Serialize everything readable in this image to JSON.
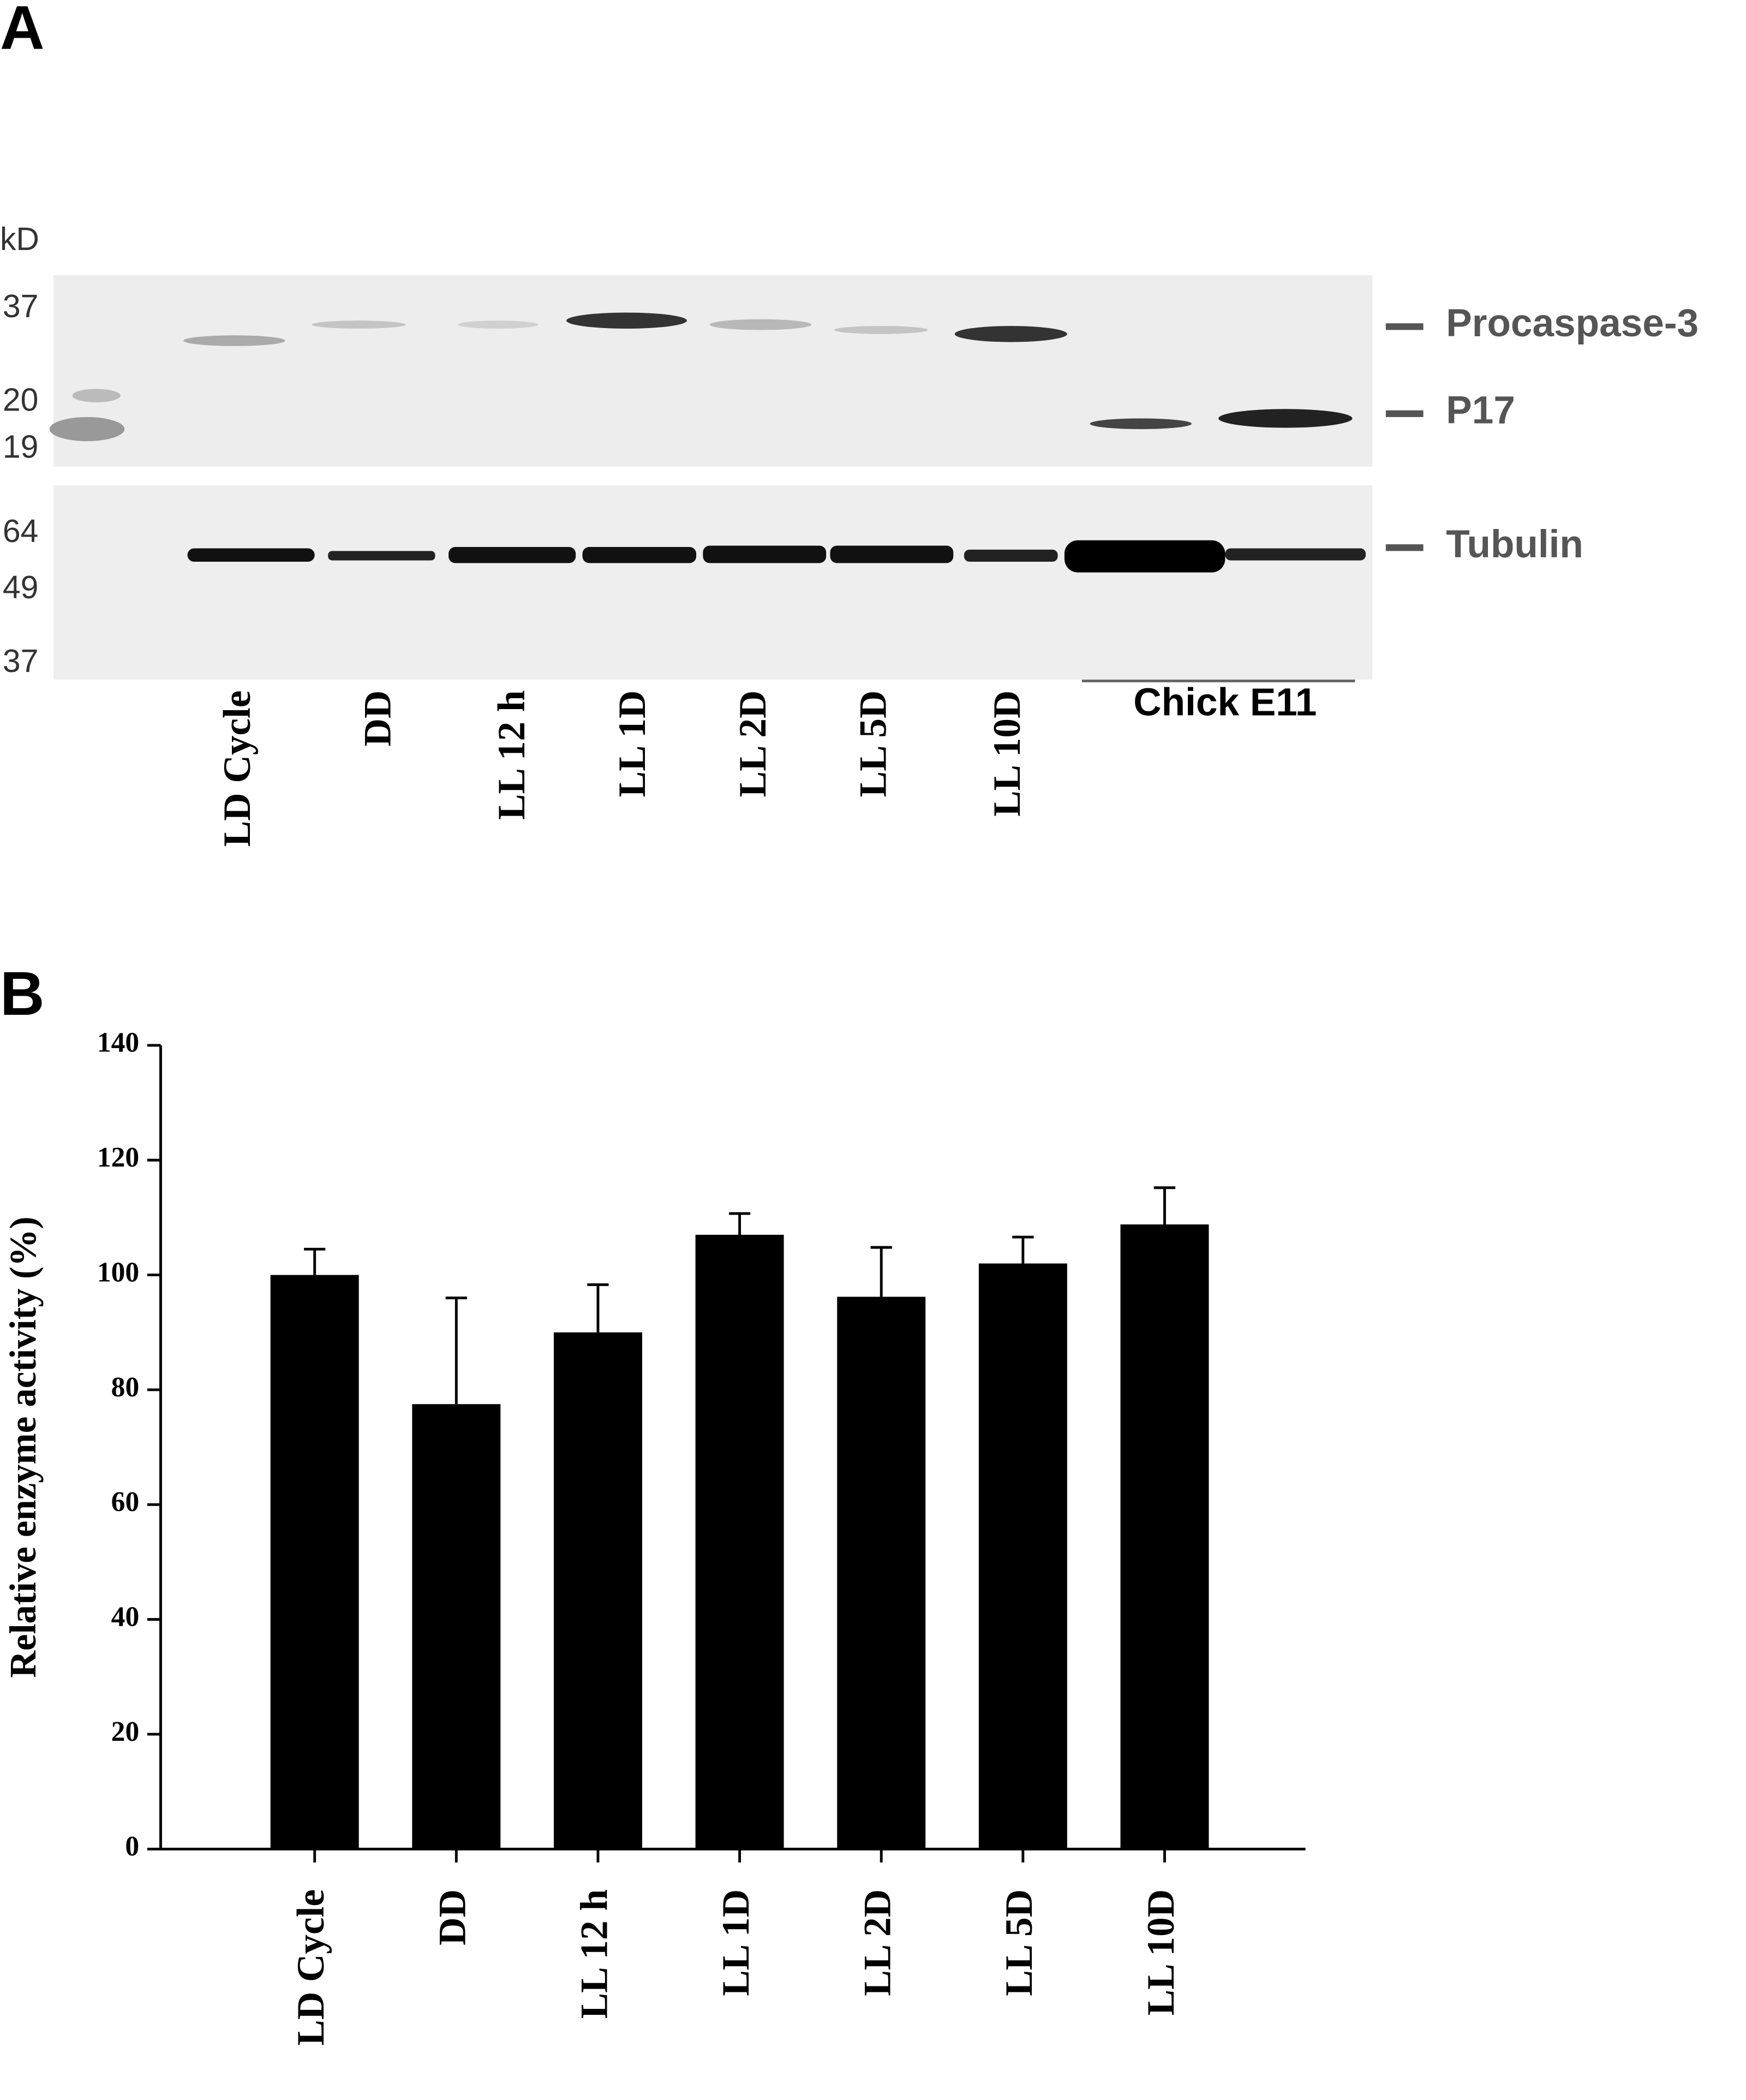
{
  "panel_a": {
    "label": "A",
    "unit": "kD",
    "upper_markers": [
      "37",
      "20",
      "19"
    ],
    "lower_markers": [
      "64",
      "49",
      "37"
    ],
    "bands": [
      "Procaspase-3",
      "P17",
      "Tubulin"
    ],
    "lanes": [
      "LD Cycle",
      "DD",
      "LL 12 h",
      "LL 1D",
      "LL 2D",
      "LL 5D",
      "LL 10D"
    ],
    "group": "Chick E11"
  },
  "chart_data": {
    "type": "bar",
    "panel_label": "B",
    "y_label": "Relative enzyme activity (%)",
    "categories": [
      "LD Cycle",
      "DD",
      "LL 12 h",
      "LL 1D",
      "LL 2D",
      "LL 5D",
      "LL 10D"
    ],
    "values": [
      100,
      77.5,
      90,
      107,
      96.2,
      102,
      108.8
    ],
    "errors": [
      4.5,
      18.5,
      8.3,
      3.7,
      8.6,
      4.6,
      6.4
    ],
    "color": "#000000",
    "ylim": [
      0,
      140
    ],
    "yticks": [
      0,
      20,
      40,
      60,
      80,
      100,
      120,
      140
    ]
  }
}
